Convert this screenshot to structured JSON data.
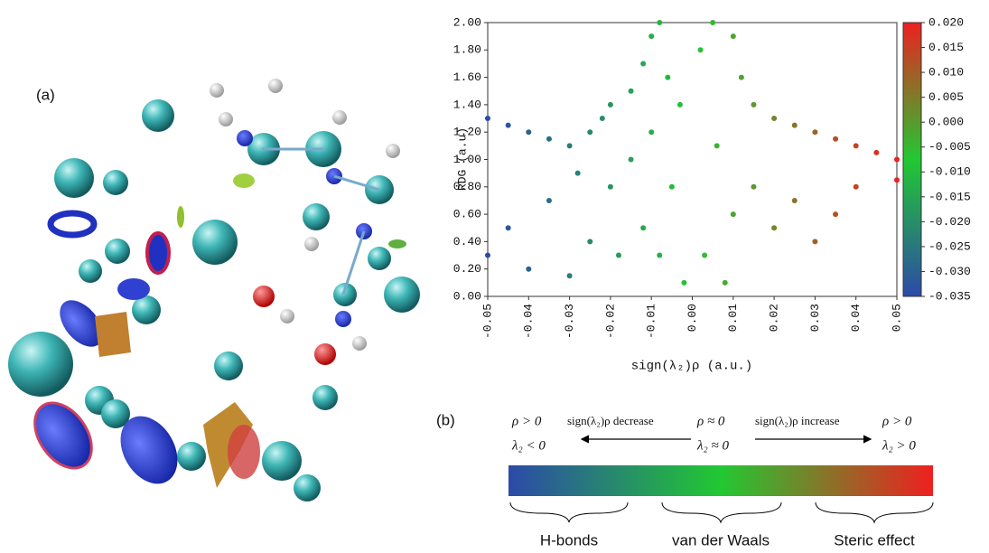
{
  "panel_labels": [
    "(a)",
    "(b)"
  ],
  "chart_data": {
    "type": "scatter",
    "xlabel": "sign(λ₂)ρ (a.u.)",
    "ylabel": "RDG (a.u)",
    "x": [
      -0.05,
      -0.05,
      -0.045,
      -0.045,
      -0.04,
      -0.04,
      -0.035,
      -0.035,
      -0.03,
      -0.03,
      -0.028,
      -0.025,
      -0.025,
      -0.022,
      -0.02,
      -0.02,
      -0.018,
      -0.015,
      -0.015,
      -0.012,
      -0.012,
      -0.01,
      -0.01,
      -0.008,
      -0.008,
      -0.006,
      -0.005,
      -0.003,
      -0.002,
      0.002,
      0.003,
      0.005,
      0.006,
      0.008,
      0.01,
      0.01,
      0.012,
      0.015,
      0.015,
      0.02,
      0.02,
      0.025,
      0.025,
      0.03,
      0.03,
      0.035,
      0.035,
      0.04,
      0.04,
      0.045,
      0.05,
      0.05
    ],
    "values": [
      1.3,
      0.3,
      1.25,
      0.5,
      1.2,
      0.2,
      1.15,
      0.7,
      1.1,
      0.15,
      0.9,
      1.2,
      0.4,
      1.3,
      0.8,
      1.4,
      0.3,
      1.5,
      1.0,
      1.7,
      0.5,
      1.9,
      1.2,
      2.0,
      0.3,
      1.6,
      0.8,
      1.4,
      0.1,
      1.8,
      0.3,
      2.0,
      1.1,
      0.1,
      1.9,
      0.6,
      1.6,
      1.4,
      0.8,
      1.3,
      0.5,
      1.25,
      0.7,
      1.2,
      0.4,
      1.15,
      0.6,
      1.1,
      0.8,
      1.05,
      1.0,
      0.85
    ],
    "colormap": [
      "#2c4aa8",
      "#22c832",
      "#ee2020"
    ],
    "xlim": [
      -0.05,
      0.05
    ],
    "xticks": [
      -0.05,
      -0.04,
      -0.03,
      -0.02,
      -0.01,
      {
        "value": 0,
        "label": "0.00"
      },
      0.01,
      0.02,
      0.03,
      0.04,
      0.05
    ],
    "ylim": [
      0,
      2
    ],
    "yticks": [
      {
        "value": 0,
        "label": "0.00"
      },
      {
        "value": 0.2,
        "label": "0.20"
      },
      {
        "value": 0.4,
        "label": "0.40"
      },
      {
        "value": 0.6,
        "label": "0.60"
      },
      {
        "value": 0.8,
        "label": "0.80"
      },
      {
        "value": 1,
        "label": "1.00"
      },
      {
        "value": 1.2,
        "label": "1.20"
      },
      {
        "value": 1.4,
        "label": "1.40"
      },
      {
        "value": 1.6,
        "label": "1.60"
      },
      {
        "value": 1.8,
        "label": "1.80"
      },
      {
        "value": 2,
        "label": "2.00"
      }
    ],
    "clim": [
      -0.035,
      0.02
    ],
    "cticks": [
      {
        "value": 0.02,
        "label": "0.020"
      },
      {
        "value": 0.015,
        "label": "0.015"
      },
      {
        "value": 0.01,
        "label": "0.010"
      },
      {
        "value": 0.005,
        "label": "0.005"
      },
      {
        "value": 0,
        "label": "0.000"
      },
      {
        "value": -0.005,
        "label": "-0.005"
      },
      {
        "value": -0.01,
        "label": "-0.010"
      },
      {
        "value": -0.015,
        "label": "-0.015"
      },
      {
        "value": -0.02,
        "label": "-0.020"
      },
      {
        "value": -0.025,
        "label": "-0.025"
      },
      {
        "value": -0.03,
        "label": "-0.030"
      },
      {
        "value": -0.035,
        "label": "-0.035"
      }
    ]
  },
  "panel_b": {
    "left_top": "ρ > 0",
    "left_bottom": "λ₂ < 0",
    "decrease": "sign(λ₂)ρ decrease",
    "center_top": "ρ ≈ 0",
    "center_bottom": "λ₂ ≈ 0",
    "increase": "sign(λ₂)ρ increase",
    "right_top": "ρ > 0",
    "right_bottom": "λ₂ > 0",
    "regions": [
      "H-bonds",
      "van der Waals",
      "Steric effect"
    ]
  }
}
